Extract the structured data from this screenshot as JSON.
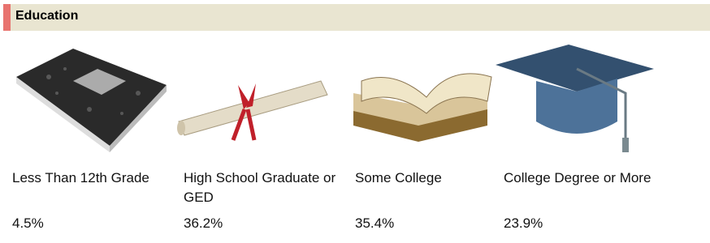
{
  "header": {
    "title": "Education"
  },
  "items": [
    {
      "label": "Less Than 12th Grade",
      "value": "4.5%"
    },
    {
      "label": "High School Graduate or GED",
      "value": "36.2%"
    },
    {
      "label": "Some College",
      "value": "35.4%"
    },
    {
      "label": "College Degree or More",
      "value": "23.9%"
    }
  ]
}
